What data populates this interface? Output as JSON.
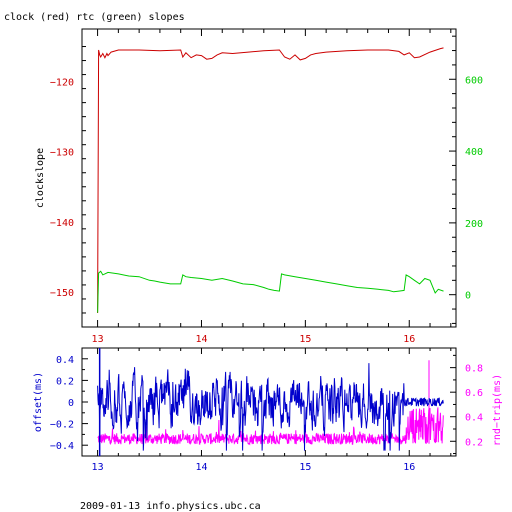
{
  "chart_data": [
    {
      "type": "line",
      "title": "clock (red) rtc (green) slopes",
      "ylabel": "clockslope",
      "xlim": [
        12.85,
        16.45
      ],
      "xticks": [
        13,
        14,
        15,
        16
      ],
      "xtick_color": "#cc0000",
      "left_axis": {
        "color": "#cc0000",
        "ylim": [
          -155,
          -112.5
        ],
        "ticks": [
          -120,
          -130,
          -140,
          -150
        ],
        "tick_labels": [
          "−120",
          "−130",
          "−140",
          "−150"
        ]
      },
      "right_axis": {
        "color": "#00cc00",
        "ylim": [
          -90,
          740
        ],
        "ticks": [
          0,
          200,
          400,
          600
        ],
        "tick_labels": [
          "0",
          "200",
          "400",
          "600"
        ]
      },
      "series": [
        {
          "color": "#cc0000",
          "axis": "left",
          "x": [
            13.0,
            13.01,
            13.02,
            13.03,
            13.05,
            13.07,
            13.09,
            13.1,
            13.13,
            13.2,
            13.4,
            13.6,
            13.8,
            13.82,
            13.85,
            13.9,
            13.95,
            14.0,
            14.05,
            14.1,
            14.15,
            14.2,
            14.3,
            14.45,
            14.6,
            14.75,
            14.8,
            14.85,
            14.9,
            14.95,
            15.0,
            15.05,
            15.1,
            15.2,
            15.4,
            15.6,
            15.8,
            15.9,
            15.95,
            16.0,
            16.05,
            16.1,
            16.2,
            16.3,
            16.33
          ],
          "y": [
            -153,
            -115.5,
            -116.2,
            -116.5,
            -116.0,
            -116.6,
            -116.0,
            -116.3,
            -115.8,
            -115.5,
            -115.5,
            -115.6,
            -115.5,
            -116.5,
            -115.9,
            -116.6,
            -116.2,
            -116.3,
            -116.8,
            -116.7,
            -116.2,
            -115.9,
            -116.0,
            -115.8,
            -115.6,
            -115.5,
            -116.5,
            -116.8,
            -116.2,
            -116.9,
            -116.7,
            -116.2,
            -116.0,
            -115.8,
            -115.6,
            -115.5,
            -115.5,
            -115.7,
            -116.2,
            -115.9,
            -116.6,
            -116.5,
            -115.8,
            -115.3,
            -115.2
          ]
        },
        {
          "color": "#00cc00",
          "axis": "right",
          "x": [
            13.0,
            13.01,
            13.03,
            13.05,
            13.1,
            13.2,
            13.3,
            13.4,
            13.5,
            13.55,
            13.6,
            13.7,
            13.8,
            13.82,
            13.85,
            13.9,
            14.0,
            14.1,
            14.2,
            14.3,
            14.4,
            14.5,
            14.6,
            14.65,
            14.7,
            14.75,
            14.77,
            14.8,
            14.9,
            15.0,
            15.1,
            15.2,
            15.3,
            15.4,
            15.5,
            15.6,
            15.7,
            15.8,
            15.85,
            15.9,
            15.95,
            15.97,
            16.0,
            16.05,
            16.1,
            16.15,
            16.2,
            16.25,
            16.28,
            16.33
          ],
          "y": [
            -50,
            60,
            65,
            55,
            62,
            58,
            52,
            50,
            40,
            38,
            35,
            30,
            30,
            55,
            50,
            48,
            45,
            40,
            45,
            38,
            30,
            28,
            20,
            15,
            12,
            10,
            58,
            55,
            50,
            45,
            40,
            35,
            30,
            25,
            20,
            18,
            15,
            12,
            8,
            10,
            12,
            55,
            50,
            40,
            30,
            45,
            40,
            5,
            15,
            10
          ]
        }
      ]
    },
    {
      "type": "line",
      "xlim": [
        12.85,
        16.45
      ],
      "xticks": [
        13,
        14,
        15,
        16
      ],
      "xtick_color": "#0000cc",
      "left_axis": {
        "label": "offset(ms)",
        "color": "#0000cc",
        "ylim": [
          -0.5,
          0.5
        ],
        "ticks": [
          0.4,
          0.2,
          0,
          -0.2,
          -0.4
        ],
        "tick_labels": [
          "0.4",
          "0.2",
          "0",
          "−0.2",
          "−0.4"
        ]
      },
      "right_axis": {
        "label": "rnd−trip(ms)",
        "color": "#ff00ff",
        "ylim": [
          0.08,
          0.96
        ],
        "ticks": [
          0.8,
          0.6,
          0.4,
          0.2
        ],
        "tick_labels": [
          "0.8",
          "0.6",
          "0.4",
          "0.2"
        ]
      },
      "series": [
        {
          "color": "#0000cc",
          "axis": "left",
          "note_range": [
            -0.5,
            0.5
          ]
        },
        {
          "color": "#ff00ff",
          "axis": "right",
          "note_range": [
            0.1,
            0.9
          ]
        }
      ]
    }
  ],
  "footer": "2009-01-13 info.physics.ubc.ca"
}
